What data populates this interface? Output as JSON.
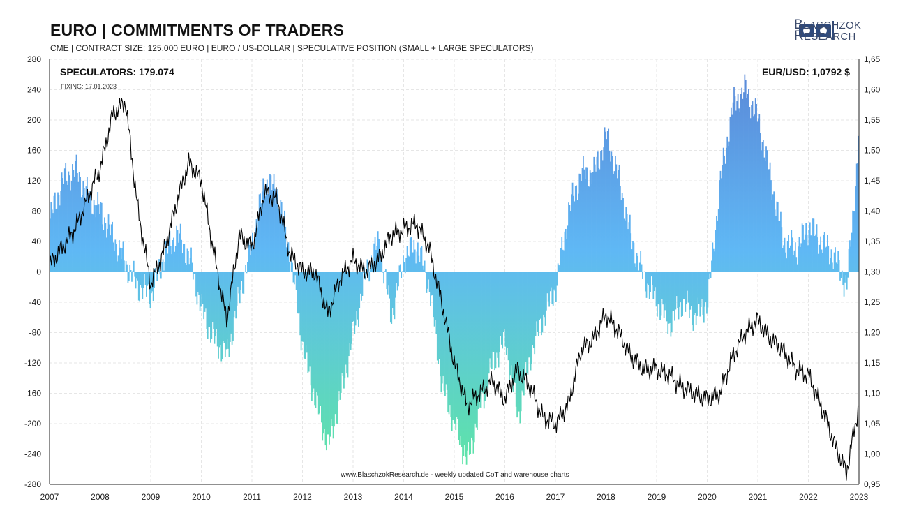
{
  "header": {
    "title": "EURO | COMMITMENTS OF TRADERS",
    "subtitle": "CME | CONTRACT SIZE: 125,000  EURO | EURO / US-DOLLAR | SPECULATIVE  POSITION (SMALL + LARGE SPECULATORS)"
  },
  "logo": {
    "line1_initial": "B",
    "line1_rest": "LASCHZOK",
    "line2_initial": "R",
    "line2_rest": "ESEARCH"
  },
  "colors": {
    "bar_top": "#5a86d6",
    "bar_mid": "#5fb8f5",
    "bar_bottom": "#5ee8a0",
    "price_line": "#000000",
    "grid": "#e6e6e6"
  },
  "chart_data": {
    "type": "bar",
    "annotations": {
      "speculators": "SPECULATORS: 179.074",
      "fixing": "FIXING: 17.01.2023",
      "eurusd": "EUR/USD: 1,0792 $",
      "watermark": "www.BlaschzokResearch.de - weekly updated CoT and warehouse charts"
    },
    "x_ticks": [
      "2007",
      "2008",
      "2009",
      "2010",
      "2011",
      "2012",
      "2013",
      "2014",
      "2015",
      "2016",
      "2017",
      "2018",
      "2019",
      "2020",
      "2021",
      "2022",
      "2023"
    ],
    "ylim_left": [
      -280,
      280
    ],
    "y_left_ticks": [
      280,
      240,
      200,
      160,
      120,
      80,
      40,
      0,
      -40,
      -80,
      -120,
      -160,
      -200,
      -240,
      -280
    ],
    "ylim_right": [
      0.95,
      1.65
    ],
    "y_right_ticks": [
      "1,65",
      "1,60",
      "1,55",
      "1,50",
      "1,45",
      "1,40",
      "1,35",
      "1,30",
      "1,25",
      "1,20",
      "1,15",
      "1,10",
      "1,05",
      "1,00",
      "0,95"
    ],
    "grid": true,
    "series": [
      {
        "role": "bars_left_axis",
        "unit": "thousand contracts",
        "x": [
          2007.0,
          2007.25,
          2007.5,
          2007.75,
          2008.0,
          2008.25,
          2008.5,
          2008.75,
          2009.0,
          2009.25,
          2009.5,
          2009.75,
          2010.0,
          2010.25,
          2010.5,
          2010.75,
          2011.0,
          2011.25,
          2011.5,
          2011.75,
          2012.0,
          2012.25,
          2012.5,
          2012.75,
          2013.0,
          2013.25,
          2013.5,
          2013.75,
          2014.0,
          2014.25,
          2014.5,
          2014.75,
          2015.0,
          2015.25,
          2015.5,
          2015.75,
          2016.0,
          2016.25,
          2016.5,
          2016.75,
          2017.0,
          2017.25,
          2017.5,
          2017.75,
          2018.0,
          2018.25,
          2018.5,
          2018.75,
          2019.0,
          2019.25,
          2019.5,
          2019.75,
          2020.0,
          2020.25,
          2020.5,
          2020.75,
          2021.0,
          2021.25,
          2021.5,
          2021.75,
          2022.0,
          2022.25,
          2022.5,
          2022.75,
          2023.0
        ],
        "values": [
          70,
          120,
          135,
          100,
          80,
          45,
          10,
          -20,
          -30,
          20,
          50,
          20,
          -50,
          -90,
          -110,
          -30,
          40,
          120,
          105,
          20,
          -100,
          -170,
          -230,
          -160,
          -80,
          0,
          40,
          -60,
          20,
          35,
          -20,
          -150,
          -200,
          -250,
          -180,
          -120,
          -90,
          -190,
          -110,
          -60,
          -20,
          80,
          130,
          130,
          180,
          120,
          40,
          -10,
          -40,
          -70,
          -40,
          -60,
          -40,
          120,
          220,
          240,
          200,
          120,
          40,
          30,
          60,
          40,
          20,
          -20,
          179
        ]
      },
      {
        "role": "price_line_right_axis",
        "name": "EUR/USD",
        "x": [
          2007.0,
          2007.25,
          2007.5,
          2007.75,
          2008.0,
          2008.25,
          2008.5,
          2008.75,
          2009.0,
          2009.25,
          2009.5,
          2009.75,
          2010.0,
          2010.25,
          2010.5,
          2010.75,
          2011.0,
          2011.25,
          2011.5,
          2011.75,
          2012.0,
          2012.25,
          2012.5,
          2012.75,
          2013.0,
          2013.25,
          2013.5,
          2013.75,
          2014.0,
          2014.25,
          2014.5,
          2014.75,
          2015.0,
          2015.25,
          2015.5,
          2015.75,
          2016.0,
          2016.25,
          2016.5,
          2016.75,
          2017.0,
          2017.25,
          2017.5,
          2017.75,
          2018.0,
          2018.25,
          2018.5,
          2018.75,
          2019.0,
          2019.25,
          2019.5,
          2019.75,
          2020.0,
          2020.25,
          2020.5,
          2020.75,
          2021.0,
          2021.25,
          2021.5,
          2021.75,
          2022.0,
          2022.25,
          2022.5,
          2022.75,
          2023.0
        ],
        "values": [
          1.31,
          1.34,
          1.37,
          1.42,
          1.47,
          1.56,
          1.58,
          1.4,
          1.28,
          1.33,
          1.41,
          1.48,
          1.45,
          1.33,
          1.22,
          1.36,
          1.34,
          1.43,
          1.42,
          1.33,
          1.3,
          1.3,
          1.23,
          1.29,
          1.32,
          1.3,
          1.32,
          1.36,
          1.37,
          1.38,
          1.34,
          1.25,
          1.15,
          1.08,
          1.1,
          1.12,
          1.09,
          1.14,
          1.11,
          1.06,
          1.05,
          1.08,
          1.17,
          1.19,
          1.23,
          1.2,
          1.16,
          1.14,
          1.14,
          1.13,
          1.11,
          1.1,
          1.09,
          1.1,
          1.16,
          1.2,
          1.22,
          1.19,
          1.17,
          1.14,
          1.13,
          1.08,
          1.02,
          0.97,
          1.08
        ]
      }
    ]
  }
}
